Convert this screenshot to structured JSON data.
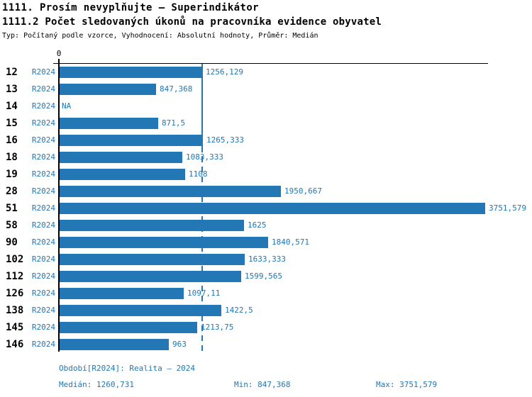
{
  "title_line1": "1111. Prosím nevyplňujte – Superindikátor",
  "title_line2": "1111.2 Počet sledovaných úkonů na pracovníka evidence obyvatel",
  "meta_line": "Typ: Počítaný podle vzorce, Vyhodnocení: Absolutní hodnoty, Průměr: Medián",
  "colors": {
    "blue": "#2277b4",
    "axis_black": "#000000",
    "background": "#ffffff"
  },
  "chart_data": {
    "type": "bar",
    "orientation": "horizontal",
    "title": "1111.2 Počet sledovaných úkonů na pracovníka evidence obyvatel",
    "xlabel": "",
    "ylabel": "",
    "xlim": [
      0,
      3751.579
    ],
    "zero_tick_label": "0",
    "grid": false,
    "period_label": "R2024",
    "median_value": 1260.731,
    "categories": [
      "12",
      "13",
      "14",
      "15",
      "16",
      "18",
      "19",
      "28",
      "51",
      "58",
      "90",
      "102",
      "112",
      "126",
      "138",
      "145",
      "146"
    ],
    "values": [
      1256.129,
      847.368,
      null,
      871.5,
      1265.333,
      1083.333,
      1108,
      1950.667,
      3751.579,
      1625,
      1840.571,
      1633.333,
      1599.565,
      1097.11,
      1422.5,
      1213.75,
      963
    ],
    "value_labels": [
      "1256,129",
      "847,368",
      "NA",
      "871,5",
      "1265,333",
      "1083,333",
      "1108",
      "1950,667",
      "3751,579",
      "1625",
      "1840,571",
      "1633,333",
      "1599,565",
      "1097,11",
      "1422,5",
      "1213,75",
      "963"
    ]
  },
  "footer": {
    "period": "Období[R2024]: Realita – 2024",
    "median": "Medián: 1260,731",
    "min": "Min: 847,368",
    "max": "Max: 3751,579"
  }
}
